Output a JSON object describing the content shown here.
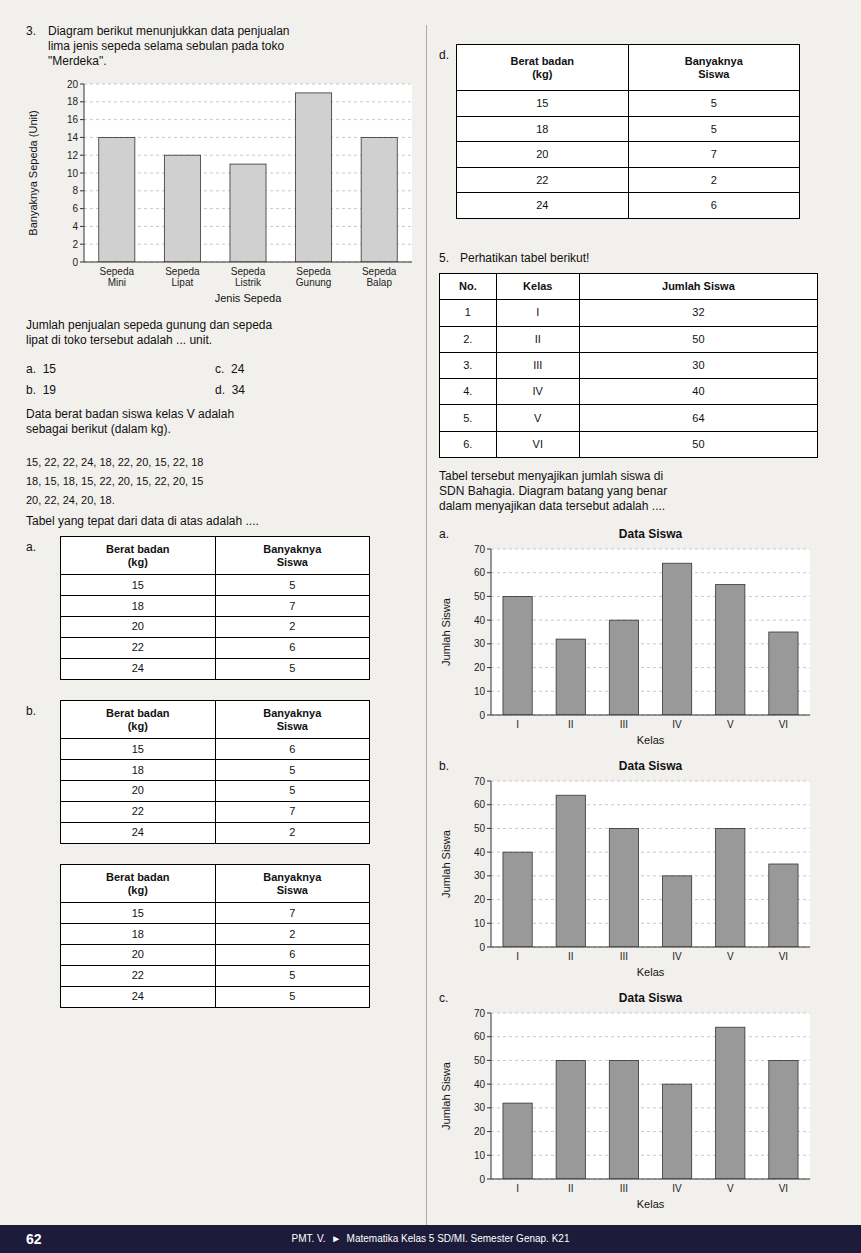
{
  "page": {
    "background": "#f2f0ed",
    "q3": {
      "number": "3.",
      "text": "Diagram berikut menunjukkan data penjualan\nlima jenis sepeda selama sebulan pada toko\n\"Merdeka\".",
      "question": "Jumlah penjualan sepeda gunung dan sepeda\nlipat di toko tersebut adalah ... unit.",
      "choices": [
        "a.  15",
        "b.  19",
        "c.  24",
        "d.  34"
      ]
    },
    "q4": {
      "text": "Data berat badan siswa kelas V adalah\nsebagai berikut (dalam kg).",
      "data_lines": [
        "15, 22, 22, 24, 18, 22, 20, 15, 22, 18",
        "18, 15, 18, 15, 22, 20, 15, 22, 20, 15",
        "20, 22, 24, 20, 18."
      ],
      "question": "Tabel yang tepat dari data di atas adalah ....",
      "tables": [
        {
          "label": "a.",
          "headers": [
            "Berat badan\n(kg)",
            "Banyaknya\nSiswa"
          ],
          "rows": [
            [
              "15",
              "5"
            ],
            [
              "18",
              "7"
            ],
            [
              "20",
              "2"
            ],
            [
              "22",
              "6"
            ],
            [
              "24",
              "5"
            ]
          ]
        },
        {
          "label": "b.",
          "headers": [
            "Berat badan\n(kg)",
            "Banyaknya\nSiswa"
          ],
          "rows": [
            [
              "15",
              "6"
            ],
            [
              "18",
              "5"
            ],
            [
              "20",
              "5"
            ],
            [
              "22",
              "7"
            ],
            [
              "24",
              "2"
            ]
          ]
        },
        {
          "headers": [
            "Berat badan\n(kg)",
            "Banyaknya\nSiswa"
          ],
          "rows": [
            [
              "15",
              "7"
            ],
            [
              "18",
              "2"
            ],
            [
              "20",
              "6"
            ],
            [
              "22",
              "5"
            ],
            [
              "24",
              "5"
            ]
          ]
        },
        {
          "label": "d.",
          "headers": [
            "Berat badan\n(kg)",
            "Banyaknya\nSiswa"
          ],
          "rows": [
            [
              "15",
              "5"
            ],
            [
              "18",
              "5"
            ],
            [
              "20",
              "7"
            ],
            [
              "22",
              "2"
            ],
            [
              "24",
              "6"
            ]
          ]
        }
      ]
    },
    "q5": {
      "number": "5.",
      "text": "Perhatikan tabel berikut!",
      "table": {
        "headers": [
          "No.",
          "Kelas",
          "Jumlah Siswa"
        ],
        "rows": [
          [
            "1",
            "I",
            "32"
          ],
          [
            "2.",
            "II",
            "50"
          ],
          [
            "3.",
            "III",
            "30"
          ],
          [
            "4.",
            "IV",
            "40"
          ],
          [
            "5.",
            "V",
            "64"
          ],
          [
            "6.",
            "VI",
            "50"
          ]
        ]
      },
      "question": "Tabel tersebut menyajikan jumlah siswa di\nSDN Bahagia. Diagram batang yang benar\ndalam menyajikan data tersebut adalah ...."
    },
    "page_number": "62",
    "footer": "PMT. V.  ►  Matematika Kelas 5 SD/MI. Semester Genap. K21",
    "footer_color": "#1c1c3a"
  },
  "chart_data": [
    {
      "type": "bar",
      "categories": [
        "Sepeda\nMini",
        "Sepeda\nLipat",
        "Sepeda\nListrik",
        "Sepeda\nGunung",
        "Sepeda\nBalap"
      ],
      "values": [
        14,
        12,
        11,
        19,
        14
      ],
      "color": "#d0d0d0",
      "xlabel": "Jenis Sepeda",
      "ylabel": "Banyaknya Sepeda (Unit)",
      "ylim": [
        0,
        20
      ],
      "yticks": [
        0,
        2,
        4,
        6,
        8,
        10,
        12,
        14,
        16,
        18,
        20
      ],
      "grid": true
    },
    {
      "type": "bar",
      "title": "Data Siswa",
      "annotations": [
        "a."
      ],
      "categories": [
        "I",
        "II",
        "III",
        "IV",
        "V",
        "VI"
      ],
      "values": [
        50,
        32,
        40,
        64,
        55,
        35
      ],
      "color": "#999999",
      "xlabel": "Kelas",
      "ylabel": "Jumlah Siswa",
      "ylim": [
        0,
        70
      ],
      "yticks": [
        0,
        10,
        20,
        30,
        40,
        50,
        60,
        70
      ],
      "grid": true
    },
    {
      "type": "bar",
      "title": "Data Siswa",
      "annotations": [
        "b."
      ],
      "categories": [
        "I",
        "II",
        "III",
        "IV",
        "V",
        "VI"
      ],
      "values": [
        40,
        64,
        50,
        30,
        50,
        35
      ],
      "color": "#999999",
      "xlabel": "Kelas",
      "ylabel": "Jumlah Siswa",
      "ylim": [
        0,
        70
      ],
      "yticks": [
        0,
        10,
        20,
        30,
        40,
        50,
        60,
        70
      ],
      "grid": true
    },
    {
      "type": "bar",
      "title": "Data Siswa",
      "annotations": [
        "c."
      ],
      "categories": [
        "I",
        "II",
        "III",
        "IV",
        "V",
        "VI"
      ],
      "values": [
        32,
        50,
        50,
        40,
        64,
        50
      ],
      "color": "#999999",
      "xlabel": "Kelas",
      "ylabel": "Jumlah Siswa",
      "ylim": [
        0,
        70
      ],
      "yticks": [
        0,
        10,
        20,
        30,
        40,
        50,
        60,
        70
      ],
      "grid": true
    }
  ]
}
